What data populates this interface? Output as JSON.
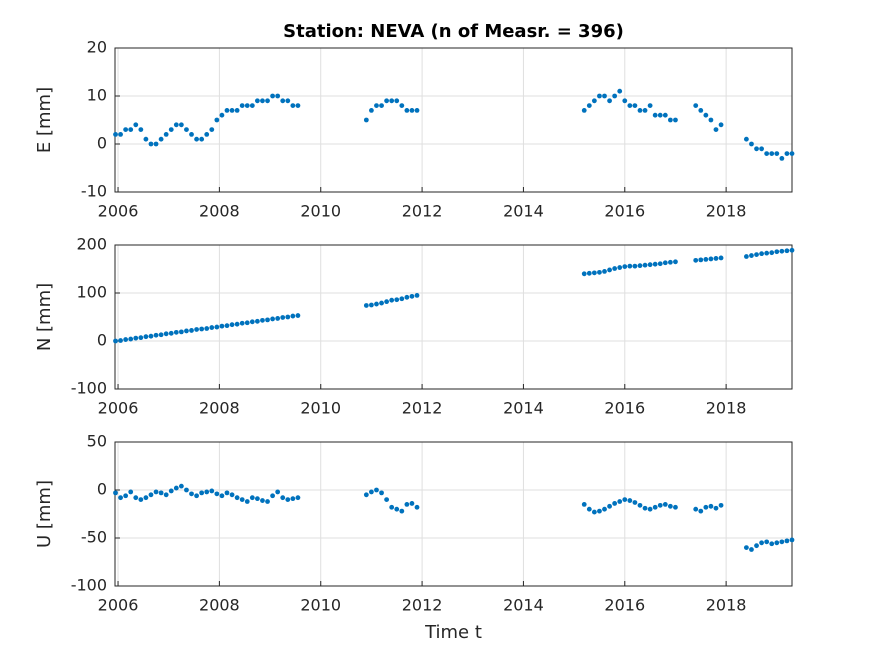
{
  "chart_data": [
    {
      "type": "scatter",
      "title": "Station: NEVA (n of Measr. = 396)",
      "ylabel": "E [mm]",
      "color": "#0072bd",
      "grid": true,
      "x": [
        2005.95,
        2006.05,
        2006.15,
        2006.25,
        2006.35,
        2006.45,
        2006.55,
        2006.65,
        2006.75,
        2006.85,
        2006.95,
        2007.05,
        2007.15,
        2007.25,
        2007.35,
        2007.45,
        2007.55,
        2007.65,
        2007.75,
        2007.85,
        2007.95,
        2008.05,
        2008.15,
        2008.25,
        2008.35,
        2008.45,
        2008.55,
        2008.65,
        2008.75,
        2008.85,
        2008.95,
        2009.05,
        2009.15,
        2009.25,
        2009.35,
        2009.45,
        2009.55,
        2010.9,
        2011.0,
        2011.1,
        2011.2,
        2011.3,
        2011.4,
        2011.5,
        2011.6,
        2011.7,
        2011.8,
        2011.9,
        2015.2,
        2015.3,
        2015.4,
        2015.5,
        2015.6,
        2015.7,
        2015.8,
        2015.9,
        2016.0,
        2016.1,
        2016.2,
        2016.3,
        2016.4,
        2016.5,
        2016.6,
        2016.7,
        2016.8,
        2016.9,
        2017.0,
        2017.4,
        2017.5,
        2017.6,
        2017.7,
        2017.8,
        2017.9,
        2018.4,
        2018.5,
        2018.6,
        2018.7,
        2018.8,
        2018.9,
        2019.0,
        2019.1,
        2019.2,
        2019.3
      ],
      "values": [
        2,
        2,
        3,
        3,
        4,
        3,
        1,
        0,
        0,
        1,
        2,
        3,
        4,
        4,
        3,
        2,
        1,
        1,
        2,
        3,
        5,
        6,
        7,
        7,
        7,
        8,
        8,
        8,
        9,
        9,
        9,
        10,
        10,
        9,
        9,
        8,
        8,
        5,
        7,
        8,
        8,
        9,
        9,
        9,
        8,
        7,
        7,
        7,
        7,
        8,
        9,
        10,
        10,
        9,
        10,
        11,
        9,
        8,
        8,
        7,
        7,
        8,
        6,
        6,
        6,
        5,
        5,
        8,
        7,
        6,
        5,
        3,
        4,
        1,
        0,
        -1,
        -1,
        -2,
        -2,
        -2,
        -3,
        -2,
        -2
      ],
      "xlim": [
        2005.94,
        2019.3
      ],
      "xticks": [
        2006,
        2008,
        2010,
        2012,
        2014,
        2016,
        2018
      ],
      "ylim": [
        -10,
        20
      ],
      "yticks": [
        -10,
        0,
        10,
        20
      ]
    },
    {
      "type": "scatter",
      "ylabel": "N [mm]",
      "color": "#0072bd",
      "grid": true,
      "x": [
        2005.95,
        2006.05,
        2006.15,
        2006.25,
        2006.35,
        2006.45,
        2006.55,
        2006.65,
        2006.75,
        2006.85,
        2006.95,
        2007.05,
        2007.15,
        2007.25,
        2007.35,
        2007.45,
        2007.55,
        2007.65,
        2007.75,
        2007.85,
        2007.95,
        2008.05,
        2008.15,
        2008.25,
        2008.35,
        2008.45,
        2008.55,
        2008.65,
        2008.75,
        2008.85,
        2008.95,
        2009.05,
        2009.15,
        2009.25,
        2009.35,
        2009.45,
        2009.55,
        2010.9,
        2011.0,
        2011.1,
        2011.2,
        2011.3,
        2011.4,
        2011.5,
        2011.6,
        2011.7,
        2011.8,
        2011.9,
        2015.2,
        2015.3,
        2015.4,
        2015.5,
        2015.6,
        2015.7,
        2015.8,
        2015.9,
        2016.0,
        2016.1,
        2016.2,
        2016.3,
        2016.4,
        2016.5,
        2016.6,
        2016.7,
        2016.8,
        2016.9,
        2017.0,
        2017.4,
        2017.5,
        2017.6,
        2017.7,
        2017.8,
        2017.9,
        2018.4,
        2018.5,
        2018.6,
        2018.7,
        2018.8,
        2018.9,
        2019.0,
        2019.1,
        2019.2,
        2019.3
      ],
      "values": [
        0,
        1,
        3,
        4,
        6,
        7,
        9,
        10,
        12,
        13,
        15,
        16,
        18,
        19,
        21,
        22,
        24,
        25,
        26,
        28,
        29,
        31,
        32,
        34,
        35,
        37,
        38,
        40,
        41,
        43,
        44,
        46,
        47,
        49,
        50,
        52,
        53,
        74,
        75,
        77,
        79,
        82,
        85,
        86,
        88,
        91,
        93,
        95,
        140,
        141,
        142,
        143,
        145,
        148,
        151,
        153,
        155,
        156,
        156,
        157,
        158,
        159,
        160,
        161,
        163,
        164,
        165,
        168,
        169,
        170,
        171,
        172,
        173,
        176,
        178,
        180,
        182,
        183,
        184,
        186,
        187,
        188,
        189
      ],
      "xlim": [
        2005.94,
        2019.3
      ],
      "xticks": [
        2006,
        2008,
        2010,
        2012,
        2014,
        2016,
        2018
      ],
      "ylim": [
        -100,
        200
      ],
      "yticks": [
        -100,
        0,
        100,
        200
      ]
    },
    {
      "type": "scatter",
      "ylabel": "U [mm]",
      "xlabel": "Time t",
      "color": "#0072bd",
      "grid": true,
      "x": [
        2005.95,
        2006.05,
        2006.15,
        2006.25,
        2006.35,
        2006.45,
        2006.55,
        2006.65,
        2006.75,
        2006.85,
        2006.95,
        2007.05,
        2007.15,
        2007.25,
        2007.35,
        2007.45,
        2007.55,
        2007.65,
        2007.75,
        2007.85,
        2007.95,
        2008.05,
        2008.15,
        2008.25,
        2008.35,
        2008.45,
        2008.55,
        2008.65,
        2008.75,
        2008.85,
        2008.95,
        2009.05,
        2009.15,
        2009.25,
        2009.35,
        2009.45,
        2009.55,
        2010.9,
        2011.0,
        2011.1,
        2011.2,
        2011.3,
        2011.4,
        2011.5,
        2011.6,
        2011.7,
        2011.8,
        2011.9,
        2015.2,
        2015.3,
        2015.4,
        2015.5,
        2015.6,
        2015.7,
        2015.8,
        2015.9,
        2016.0,
        2016.1,
        2016.2,
        2016.3,
        2016.4,
        2016.5,
        2016.6,
        2016.7,
        2016.8,
        2016.9,
        2017.0,
        2017.4,
        2017.5,
        2017.6,
        2017.7,
        2017.8,
        2017.9,
        2018.4,
        2018.5,
        2018.6,
        2018.7,
        2018.8,
        2018.9,
        2019.0,
        2019.1,
        2019.2,
        2019.3
      ],
      "values": [
        -3,
        -8,
        -6,
        -2,
        -8,
        -10,
        -8,
        -5,
        -2,
        -3,
        -5,
        -1,
        2,
        4,
        0,
        -4,
        -6,
        -3,
        -2,
        -1,
        -4,
        -6,
        -3,
        -5,
        -8,
        -10,
        -12,
        -8,
        -9,
        -11,
        -12,
        -6,
        -2,
        -8,
        -10,
        -9,
        -8,
        -5,
        -2,
        0,
        -3,
        -10,
        -18,
        -20,
        -22,
        -15,
        -14,
        -18,
        -15,
        -20,
        -23,
        -22,
        -20,
        -17,
        -14,
        -12,
        -10,
        -11,
        -13,
        -16,
        -19,
        -20,
        -18,
        -16,
        -15,
        -17,
        -18,
        -20,
        -22,
        -18,
        -17,
        -19,
        -16,
        -60,
        -62,
        -58,
        -55,
        -54,
        -56,
        -55,
        -54,
        -53,
        -52
      ],
      "xlim": [
        2005.94,
        2019.3
      ],
      "xticks": [
        2006,
        2008,
        2010,
        2012,
        2014,
        2016,
        2018
      ],
      "ylim": [
        -100,
        50
      ],
      "yticks": [
        -100,
        -50,
        0,
        50
      ]
    }
  ]
}
